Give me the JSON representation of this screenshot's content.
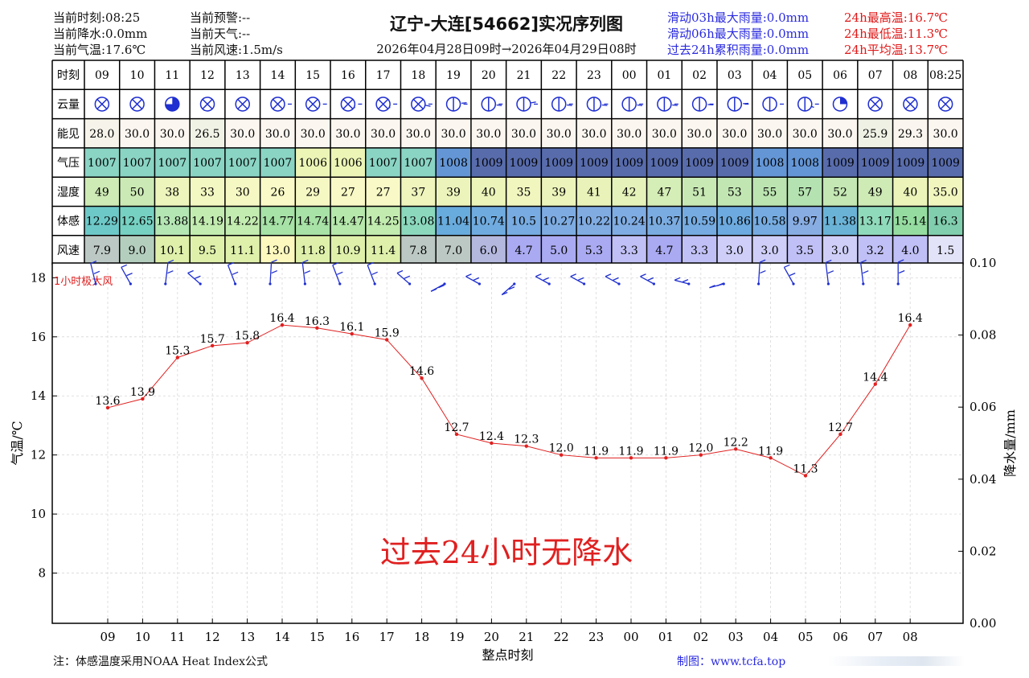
{
  "header": {
    "left": [
      "当前时刻:08:25",
      "当前降水:0.0mm",
      "当前气温:17.6℃"
    ],
    "mid": [
      "当前预警:--",
      "当前天气:--",
      "当前风速:1.5m/s"
    ],
    "title": "辽宁-大连[54662]实况序列图",
    "subtitle": "2026年04月28日09时→2026年04月29日08时",
    "rain_stats": [
      "滑动03h最大雨量:0.0mm",
      "滑动06h最大雨量:0.0mm",
      "过去24h累积雨量:0.0mm"
    ],
    "temp_stats": [
      "24h最高温:16.7℃",
      "24h最低温:11.3℃",
      "24h平均温:13.7℃"
    ]
  },
  "table": {
    "row_labels": [
      "时刻",
      "云量",
      "能见",
      "气压",
      "湿度",
      "体感",
      "风速"
    ],
    "hours": [
      "09",
      "10",
      "11",
      "12",
      "13",
      "14",
      "15",
      "16",
      "17",
      "18",
      "19",
      "20",
      "21",
      "22",
      "23",
      "00",
      "01",
      "02",
      "03",
      "04",
      "05",
      "06",
      "07",
      "08",
      "08:25"
    ],
    "cloud": [
      "overcast",
      "overcast",
      "mostly-cloudy",
      "overcast",
      "overcast",
      "overcast",
      "overcast",
      "overcast",
      "overcast",
      "overcast",
      "half",
      "half",
      "half",
      "half",
      "half",
      "half",
      "half",
      "half",
      "half",
      "half",
      "half",
      "quarter",
      "overcast",
      "overcast",
      "overcast"
    ],
    "visibility": [
      "28.0",
      "30.0",
      "30.0",
      "26.5",
      "30.0",
      "30.0",
      "30.0",
      "30.0",
      "30.0",
      "30.0",
      "30.0",
      "30.0",
      "30.0",
      "30.0",
      "30.0",
      "30.0",
      "30.0",
      "30.0",
      "30.0",
      "30.0",
      "30.0",
      "30.0",
      "25.9",
      "29.3",
      "30.0"
    ],
    "pressure": [
      "1007",
      "1007",
      "1007",
      "1007",
      "1007",
      "1007",
      "1006",
      "1006",
      "1007",
      "1007",
      "1008",
      "1009",
      "1009",
      "1009",
      "1009",
      "1009",
      "1009",
      "1009",
      "1009",
      "1008",
      "1008",
      "1009",
      "1009",
      "1009",
      "1009"
    ],
    "humidity": [
      "49",
      "50",
      "38",
      "33",
      "30",
      "26",
      "29",
      "27",
      "27",
      "37",
      "39",
      "40",
      "35",
      "39",
      "41",
      "42",
      "47",
      "51",
      "53",
      "55",
      "57",
      "52",
      "49",
      "40",
      "35.0"
    ],
    "feels": [
      "12.29",
      "12.65",
      "13.88",
      "14.19",
      "14.22",
      "14.77",
      "14.74",
      "14.47",
      "14.25",
      "13.08",
      "11.04",
      "10.74",
      "10.5",
      "10.27",
      "10.22",
      "10.24",
      "10.37",
      "10.59",
      "10.86",
      "10.58",
      "9.97",
      "11.38",
      "13.17",
      "15.14",
      "16.3"
    ],
    "wind": [
      "7.9",
      "9.0",
      "10.1",
      "9.5",
      "11.1",
      "13.0",
      "11.8",
      "10.9",
      "11.4",
      "7.8",
      "7.0",
      "6.0",
      "4.7",
      "5.0",
      "5.3",
      "3.3",
      "4.7",
      "3.3",
      "3.0",
      "3.0",
      "3.5",
      "3.0",
      "3.2",
      "4.0",
      "1.5"
    ]
  },
  "chart_data": {
    "type": "line",
    "x": [
      "09",
      "10",
      "11",
      "12",
      "13",
      "14",
      "15",
      "16",
      "17",
      "18",
      "19",
      "20",
      "21",
      "22",
      "23",
      "00",
      "01",
      "02",
      "03",
      "04",
      "05",
      "06",
      "07",
      "08"
    ],
    "series": [
      {
        "values": [
          13.6,
          13.9,
          15.3,
          15.7,
          15.8,
          16.4,
          16.3,
          16.1,
          15.9,
          14.6,
          12.7,
          12.4,
          12.3,
          12.0,
          11.9,
          11.9,
          11.9,
          12.0,
          12.2,
          11.9,
          11.3,
          12.7,
          14.4,
          16.4
        ],
        "color": "#e02020"
      }
    ],
    "wind_barbs_deg": [
      340,
      320,
      10,
      300,
      330,
      5,
      350,
      330,
      330,
      300,
      250,
      290,
      240,
      290,
      290,
      290,
      290,
      280,
      260,
      5,
      320,
      350,
      350,
      0
    ],
    "xlabel": "整点时刻",
    "ylabel": "气温/℃",
    "ylabel_right": "降水量/mm",
    "ylim": [
      6.3,
      18.5
    ],
    "yticks": [
      8,
      10,
      12,
      14,
      16,
      18
    ],
    "ylim_right": [
      0,
      0.1
    ],
    "yticks_right": [
      "0.00",
      "0.02",
      "0.04",
      "0.06",
      "0.08",
      "0.10"
    ],
    "grid": true,
    "annotation_wind": "1小时极大风",
    "annotation_rain": "过去24小时无降水"
  },
  "footer": {
    "note": "注：体感温度采用NOAA Heat Index公式",
    "credit": "制图：www.tcfa.top"
  }
}
